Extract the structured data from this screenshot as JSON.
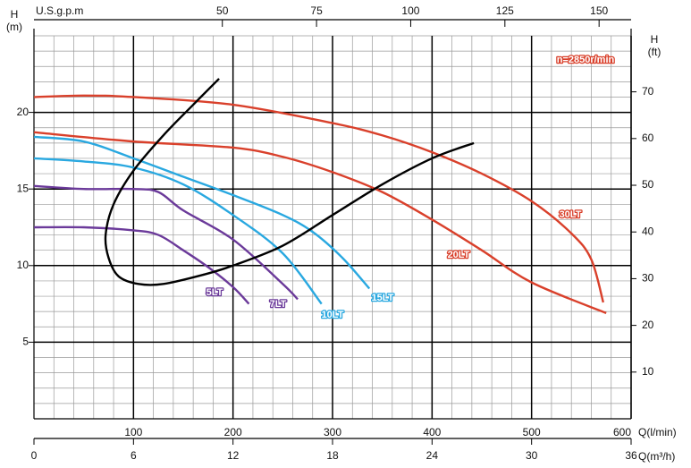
{
  "chart_data": {
    "type": "line",
    "speed_label": "n=2850r/min",
    "speed_color": "#d9402b",
    "xlabel": "Q(l/min)",
    "xlim": [
      0,
      600
    ],
    "xticks": [
      100,
      200,
      300,
      400,
      500,
      600
    ],
    "ylabel": [
      "H",
      "(m)"
    ],
    "ylim": [
      0,
      25
    ],
    "yticks": [
      5,
      10,
      15,
      20
    ],
    "y2label": [
      "H",
      "(ft)"
    ],
    "y2lim": [
      0,
      82
    ],
    "y2ticks": [
      10,
      20,
      30,
      40,
      50,
      60,
      70
    ],
    "top_axis": {
      "label": "U.S.g.p.m",
      "lim": [
        0,
        158.5
      ],
      "ticks": [
        50,
        75,
        100,
        125,
        150
      ]
    },
    "bottom_axis2": {
      "label": "Q(m³/h)",
      "lim": [
        0,
        36
      ],
      "ticks": [
        0,
        6,
        12,
        18,
        24,
        30,
        36
      ]
    },
    "grid": {
      "minor_x": 20,
      "minor_y": 1
    },
    "series": [
      {
        "name": "5LT",
        "color": "#6b3a9a",
        "x": [
          0,
          50,
          100,
          125,
          150,
          175,
          200,
          216
        ],
        "values": [
          12.5,
          12.5,
          12.3,
          12.0,
          11.0,
          9.9,
          8.6,
          7.5
        ]
      },
      {
        "name": "7LT",
        "color": "#6b3a9a",
        "x": [
          0,
          50,
          100,
          125,
          150,
          200,
          250,
          265
        ],
        "values": [
          15.2,
          15.0,
          15.0,
          14.8,
          13.6,
          11.7,
          8.8,
          7.8
        ]
      },
      {
        "name": "10LT",
        "color": "#29a8e0",
        "x": [
          0,
          50,
          100,
          150,
          200,
          250,
          289
        ],
        "values": [
          17.0,
          16.8,
          16.4,
          15.3,
          13.3,
          10.8,
          7.5
        ]
      },
      {
        "name": "15LT",
        "color": "#29a8e0",
        "x": [
          0,
          50,
          100,
          150,
          200,
          250,
          280,
          310,
          337
        ],
        "values": [
          18.4,
          18.1,
          17.0,
          15.8,
          14.6,
          13.3,
          12.2,
          10.5,
          8.5
        ]
      },
      {
        "name": "20LT",
        "color": "#d9402b",
        "x": [
          0,
          100,
          200,
          250,
          300,
          350,
          400,
          450,
          500,
          575
        ],
        "values": [
          18.7,
          18.1,
          17.7,
          17.1,
          16.1,
          14.8,
          13.0,
          11.0,
          8.9,
          6.9
        ]
      },
      {
        "name": "30LT",
        "color": "#d9402b",
        "x": [
          0,
          50,
          100,
          200,
          300,
          350,
          400,
          450,
          500,
          540,
          560,
          572
        ],
        "values": [
          21.0,
          21.1,
          21.0,
          20.5,
          19.3,
          18.5,
          17.4,
          16.0,
          14.2,
          12.1,
          10.4,
          7.6
        ]
      },
      {
        "color": "#000000",
        "x": [
          186,
          160,
          130,
          100,
          80,
          72,
          75,
          85,
          105,
          130,
          170,
          200,
          250,
          300,
          350,
          400,
          442
        ],
        "values": [
          22.2,
          20.5,
          18.5,
          16.2,
          14.0,
          12.0,
          10.5,
          9.3,
          8.8,
          8.8,
          9.4,
          10.0,
          11.3,
          13.3,
          15.3,
          17.0,
          18.0
        ]
      }
    ]
  }
}
